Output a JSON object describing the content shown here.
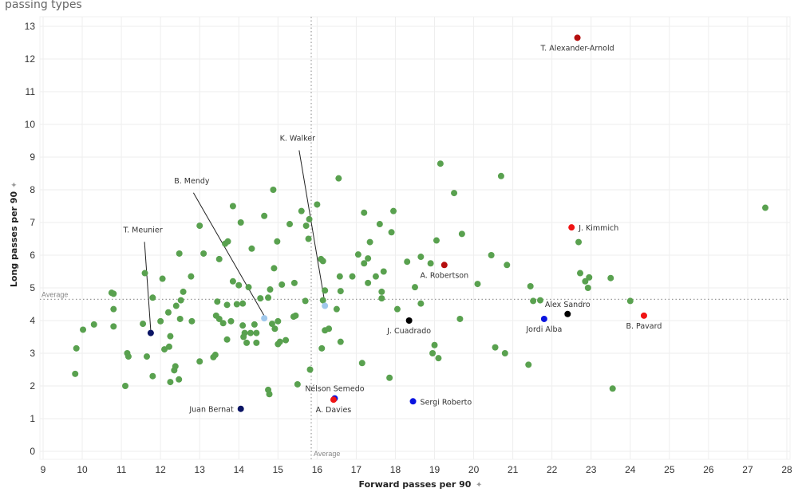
{
  "page": {
    "title": "passing types"
  },
  "chart_data": {
    "type": "scatter",
    "title": "passing types",
    "xlabel": "Forward passes per 90",
    "ylabel": "Long passes per 90",
    "xlim": [
      9,
      28
    ],
    "ylim": [
      0,
      13
    ],
    "x_ticks": [
      9,
      10,
      11,
      12,
      13,
      14,
      15,
      16,
      17,
      18,
      19,
      20,
      21,
      22,
      23,
      24,
      25,
      26,
      27,
      28
    ],
    "y_ticks": [
      0,
      1,
      2,
      3,
      4,
      5,
      6,
      7,
      8,
      9,
      10,
      11,
      12,
      13
    ],
    "grid": true,
    "reference_lines": [
      {
        "axis": "x",
        "value": 15.85,
        "label": "Average"
      },
      {
        "axis": "y",
        "value": 4.65,
        "label": "Average"
      }
    ],
    "colors": {
      "default": "#59a14f",
      "dark_red": "#b50e0e",
      "red": "#f01414",
      "blue": "#0a14e0",
      "navy": "#0a1464",
      "black": "#000000",
      "light_blue": "#a0c8ec"
    },
    "highlighted": [
      {
        "name": "T. Alexander-Arnold",
        "x": 22.65,
        "y": 12.65,
        "color": "dark_red",
        "label_pos": "below"
      },
      {
        "name": "J. Kimmich",
        "x": 22.5,
        "y": 6.85,
        "color": "red",
        "label_pos": "right"
      },
      {
        "name": "A. Robertson",
        "x": 19.25,
        "y": 5.7,
        "color": "dark_red",
        "label_pos": "below"
      },
      {
        "name": "Alex Sandro",
        "x": 22.4,
        "y": 4.2,
        "color": "black",
        "label_pos": "above"
      },
      {
        "name": "Jordi Alba",
        "x": 21.8,
        "y": 4.05,
        "color": "blue",
        "label_pos": "below"
      },
      {
        "name": "B. Pavard",
        "x": 24.35,
        "y": 4.15,
        "color": "red",
        "label_pos": "below"
      },
      {
        "name": "J. Cuadrado",
        "x": 18.35,
        "y": 4.0,
        "color": "black",
        "label_pos": "below"
      },
      {
        "name": "Nélson Semedo",
        "x": 16.45,
        "y": 1.62,
        "color": "blue",
        "label_pos": "above"
      },
      {
        "name": "A. Davies",
        "x": 16.42,
        "y": 1.58,
        "color": "red",
        "label_pos": "below"
      },
      {
        "name": "Sergi Roberto",
        "x": 18.45,
        "y": 1.53,
        "color": "blue",
        "label_pos": "right"
      },
      {
        "name": "Juan Bernat",
        "x": 14.05,
        "y": 1.3,
        "color": "navy",
        "label_pos": "left"
      },
      {
        "name": "T. Meunier",
        "x": 11.75,
        "y": 3.62,
        "color": "navy",
        "label_pos": "callout",
        "callout_at": [
          11.55,
          6.7
        ]
      },
      {
        "name": "B. Mendy",
        "x": 14.65,
        "y": 4.07,
        "color": "light_blue",
        "label_pos": "callout",
        "callout_at": [
          12.8,
          8.2
        ]
      },
      {
        "name": "K. Walker",
        "x": 16.2,
        "y": 4.45,
        "color": "light_blue",
        "label_pos": "callout",
        "callout_at": [
          15.5,
          9.5
        ]
      }
    ],
    "points": [
      [
        9.85,
        3.15
      ],
      [
        9.82,
        2.37
      ],
      [
        10.02,
        3.72
      ],
      [
        10.3,
        3.88
      ],
      [
        10.75,
        4.85
      ],
      [
        10.8,
        4.82
      ],
      [
        10.8,
        4.35
      ],
      [
        10.8,
        3.82
      ],
      [
        11.1,
        2.0
      ],
      [
        11.15,
        3.0
      ],
      [
        11.18,
        2.9
      ],
      [
        11.55,
        3.9
      ],
      [
        11.6,
        5.45
      ],
      [
        11.65,
        2.9
      ],
      [
        11.8,
        4.7
      ],
      [
        11.8,
        2.3
      ],
      [
        12.0,
        3.98
      ],
      [
        12.05,
        5.28
      ],
      [
        12.1,
        3.12
      ],
      [
        12.2,
        4.25
      ],
      [
        12.22,
        3.2
      ],
      [
        12.25,
        3.52
      ],
      [
        12.25,
        2.12
      ],
      [
        12.35,
        2.48
      ],
      [
        12.38,
        2.6
      ],
      [
        12.4,
        4.45
      ],
      [
        12.47,
        2.2
      ],
      [
        12.48,
        6.05
      ],
      [
        12.5,
        4.05
      ],
      [
        12.52,
        4.62
      ],
      [
        12.58,
        4.88
      ],
      [
        12.78,
        5.35
      ],
      [
        12.8,
        3.98
      ],
      [
        13.0,
        2.75
      ],
      [
        13.0,
        6.9
      ],
      [
        13.1,
        6.05
      ],
      [
        13.35,
        2.88
      ],
      [
        13.4,
        2.95
      ],
      [
        13.42,
        4.15
      ],
      [
        13.45,
        4.58
      ],
      [
        13.5,
        5.88
      ],
      [
        13.5,
        4.05
      ],
      [
        13.6,
        3.92
      ],
      [
        13.65,
        6.35
      ],
      [
        13.7,
        4.48
      ],
      [
        13.7,
        3.42
      ],
      [
        13.72,
        6.42
      ],
      [
        13.8,
        3.98
      ],
      [
        13.85,
        7.5
      ],
      [
        13.85,
        5.2
      ],
      [
        13.95,
        4.5
      ],
      [
        14.0,
        5.08
      ],
      [
        14.05,
        7.0
      ],
      [
        14.1,
        4.52
      ],
      [
        14.1,
        3.85
      ],
      [
        14.12,
        3.5
      ],
      [
        14.15,
        3.62
      ],
      [
        14.2,
        3.32
      ],
      [
        14.25,
        5.02
      ],
      [
        14.3,
        3.62
      ],
      [
        14.33,
        6.2
      ],
      [
        14.4,
        3.88
      ],
      [
        14.45,
        3.62
      ],
      [
        14.45,
        3.32
      ],
      [
        14.55,
        4.68
      ],
      [
        14.65,
        7.2
      ],
      [
        14.75,
        4.7
      ],
      [
        14.75,
        1.88
      ],
      [
        14.78,
        1.75
      ],
      [
        14.8,
        4.95
      ],
      [
        14.85,
        3.9
      ],
      [
        14.88,
        8.0
      ],
      [
        14.9,
        5.6
      ],
      [
        14.92,
        3.75
      ],
      [
        14.98,
        6.42
      ],
      [
        15.0,
        3.98
      ],
      [
        15.0,
        3.28
      ],
      [
        15.05,
        3.35
      ],
      [
        15.1,
        5.1
      ],
      [
        15.2,
        3.4
      ],
      [
        15.3,
        6.95
      ],
      [
        15.4,
        4.12
      ],
      [
        15.42,
        5.15
      ],
      [
        15.45,
        4.15
      ],
      [
        15.5,
        2.05
      ],
      [
        15.6,
        7.35
      ],
      [
        15.7,
        4.6
      ],
      [
        15.72,
        6.9
      ],
      [
        15.78,
        6.5
      ],
      [
        15.8,
        7.1
      ],
      [
        15.82,
        2.5
      ],
      [
        16.0,
        7.55
      ],
      [
        16.1,
        5.88
      ],
      [
        16.12,
        3.15
      ],
      [
        16.15,
        5.82
      ],
      [
        16.2,
        4.92
      ],
      [
        16.2,
        3.7
      ],
      [
        16.3,
        3.75
      ],
      [
        16.15,
        4.62
      ],
      [
        16.55,
        8.35
      ],
      [
        16.58,
        5.35
      ],
      [
        16.6,
        4.9
      ],
      [
        16.6,
        3.35
      ],
      [
        16.5,
        4.35
      ],
      [
        16.9,
        5.35
      ],
      [
        17.05,
        6.02
      ],
      [
        17.15,
        2.7
      ],
      [
        17.2,
        7.3
      ],
      [
        17.2,
        5.75
      ],
      [
        17.3,
        5.9
      ],
      [
        17.3,
        5.15
      ],
      [
        17.35,
        6.4
      ],
      [
        17.5,
        5.35
      ],
      [
        17.6,
        6.95
      ],
      [
        17.65,
        4.88
      ],
      [
        17.65,
        4.68
      ],
      [
        17.7,
        5.5
      ],
      [
        17.85,
        2.25
      ],
      [
        17.9,
        6.7
      ],
      [
        17.95,
        7.35
      ],
      [
        18.05,
        4.35
      ],
      [
        18.3,
        5.8
      ],
      [
        18.5,
        5.02
      ],
      [
        18.65,
        4.52
      ],
      [
        18.65,
        5.95
      ],
      [
        18.9,
        5.75
      ],
      [
        18.95,
        3.0
      ],
      [
        19.0,
        3.25
      ],
      [
        19.05,
        6.45
      ],
      [
        19.1,
        2.85
      ],
      [
        19.15,
        8.8
      ],
      [
        19.5,
        7.9
      ],
      [
        19.65,
        4.05
      ],
      [
        19.7,
        6.65
      ],
      [
        20.1,
        5.12
      ],
      [
        20.45,
        6.0
      ],
      [
        20.55,
        3.18
      ],
      [
        20.7,
        8.42
      ],
      [
        20.8,
        3.0
      ],
      [
        20.85,
        5.7
      ],
      [
        21.4,
        2.65
      ],
      [
        21.45,
        5.05
      ],
      [
        21.52,
        4.6
      ],
      [
        21.7,
        4.62
      ],
      [
        22.68,
        6.4
      ],
      [
        22.72,
        5.45
      ],
      [
        22.85,
        5.2
      ],
      [
        22.92,
        5.0
      ],
      [
        22.95,
        5.32
      ],
      [
        23.5,
        5.3
      ],
      [
        23.55,
        1.92
      ],
      [
        24.0,
        4.6
      ],
      [
        27.45,
        7.45
      ]
    ]
  }
}
